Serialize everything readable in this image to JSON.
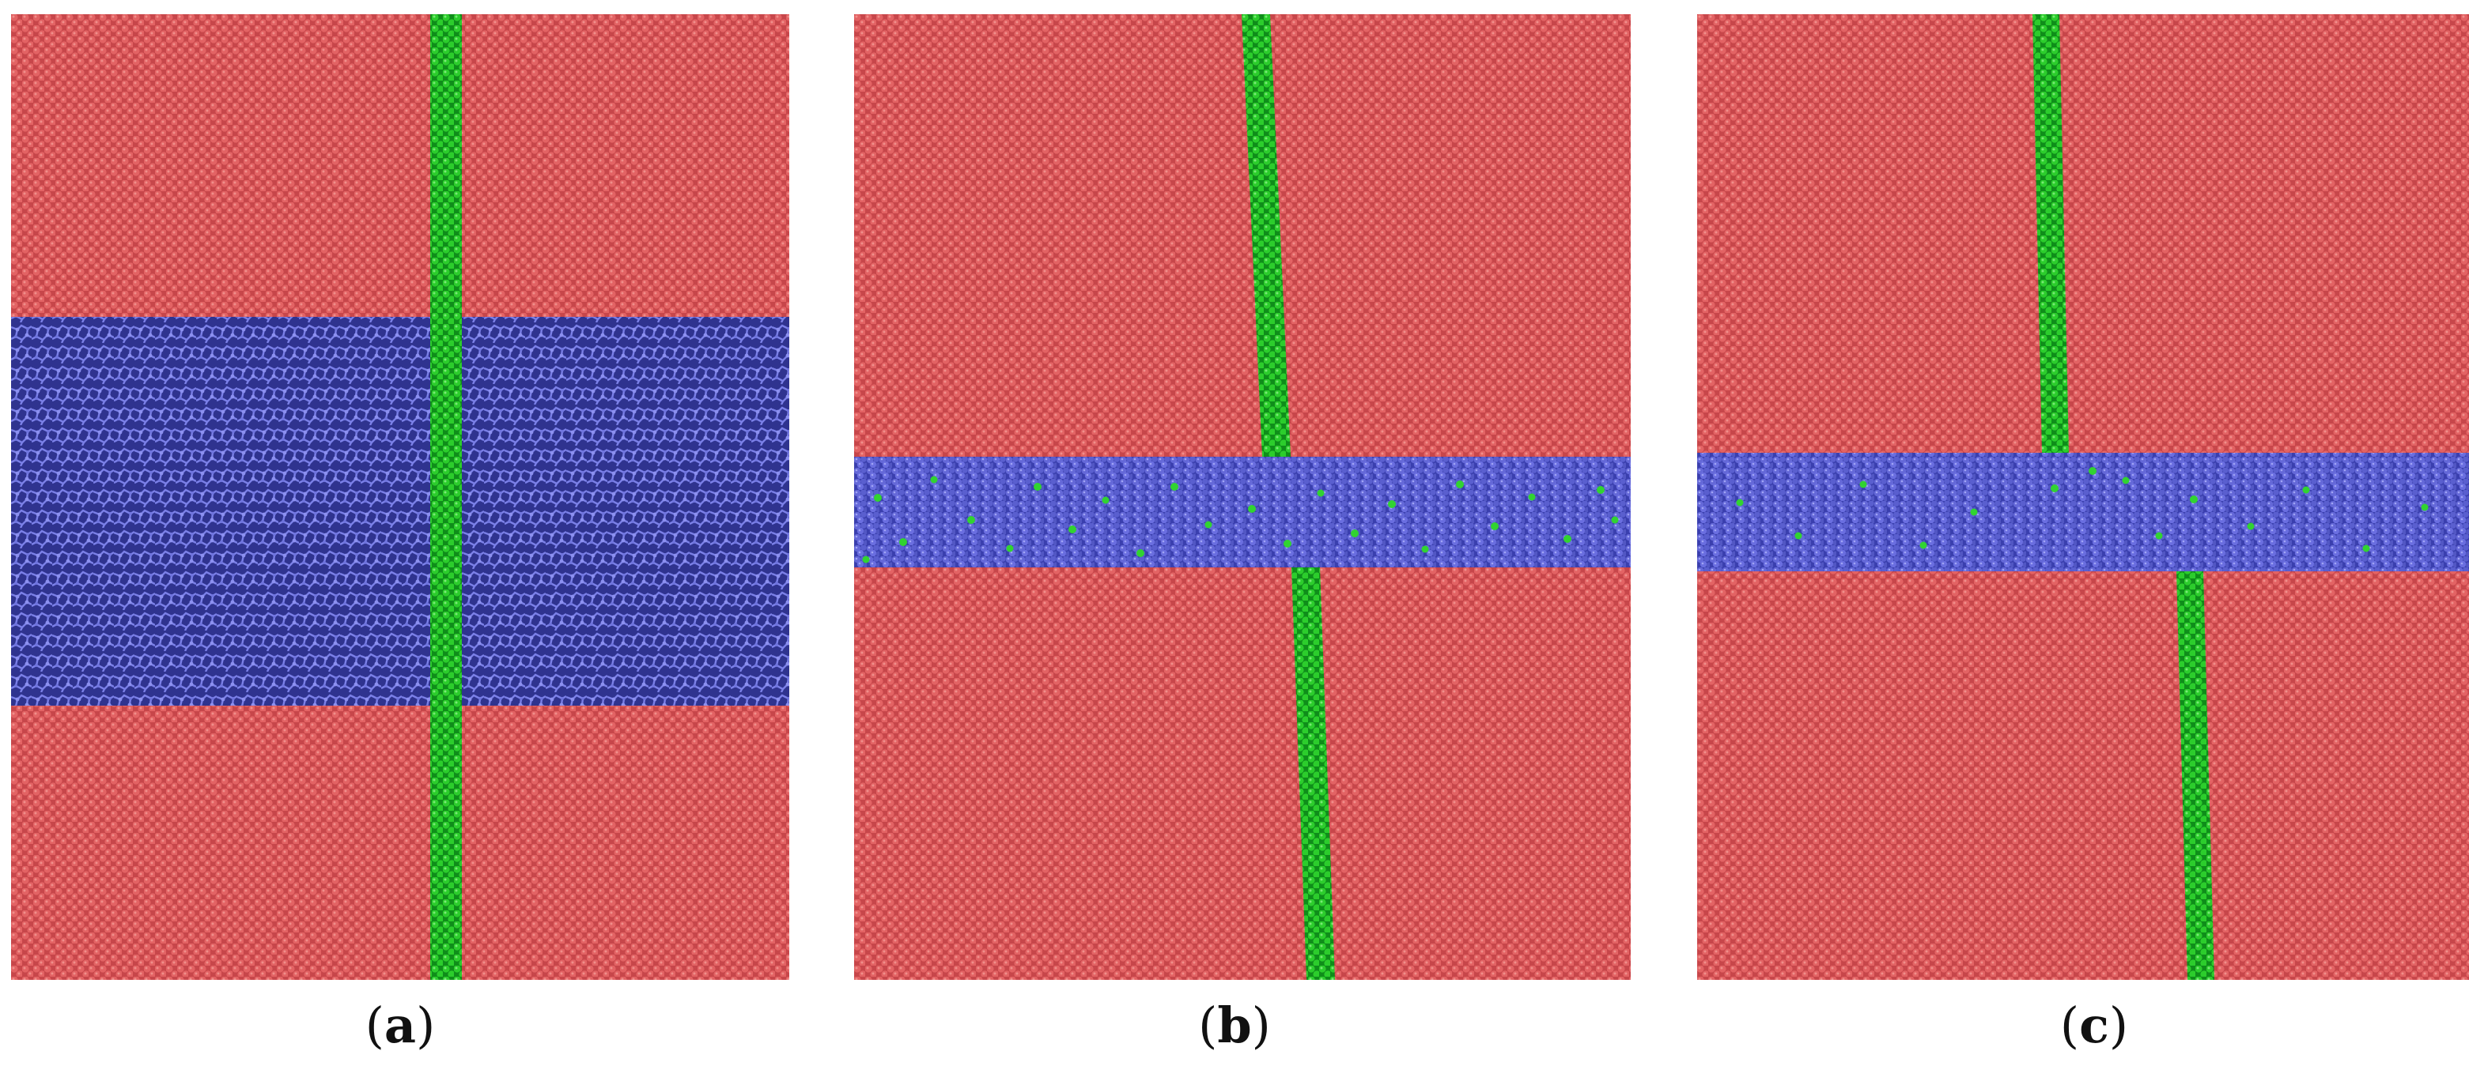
{
  "panels": [
    {
      "id": "a",
      "label": "a"
    },
    {
      "id": "b",
      "label": "b"
    },
    {
      "id": "c",
      "label": "c"
    }
  ],
  "colors": {
    "crystal": "#d85556",
    "crystal_dark": "#9e2f33",
    "amorphous": "#5a5fcf",
    "amorphous_dark": "#262a8a",
    "boundary": "#21c021",
    "boundary_dark": "#0d7a14"
  }
}
